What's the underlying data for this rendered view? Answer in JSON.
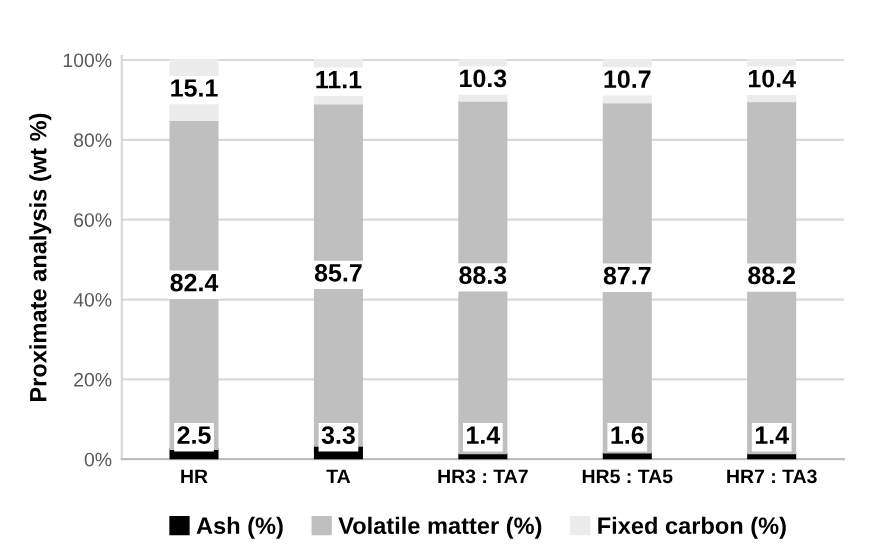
{
  "chart_data": {
    "type": "bar",
    "stacked": true,
    "ylabel": "Proximate analysis (wt %)",
    "categories": [
      "HR",
      "TA",
      "HR3 : TA7",
      "HR5 : TA5",
      "HR7 : TA3"
    ],
    "series": [
      {
        "name": "Ash (%)",
        "color": "#000000",
        "values": [
          2.5,
          3.3,
          1.4,
          1.6,
          1.4
        ]
      },
      {
        "name": "Volatile matter (%)",
        "color": "#bfbfbf",
        "values": [
          82.4,
          85.7,
          88.3,
          87.7,
          88.2
        ]
      },
      {
        "name": "Fixed carbon (%)",
        "color": "#ececec",
        "values": [
          15.1,
          11.1,
          10.3,
          10.7,
          10.4
        ]
      }
    ],
    "ylim": [
      0,
      101
    ],
    "yticks": [
      {
        "value": 0,
        "label": "0%"
      },
      {
        "value": 20,
        "label": "20%"
      },
      {
        "value": 40,
        "label": "40%"
      },
      {
        "value": 60,
        "label": "60%"
      },
      {
        "value": 80,
        "label": "80%"
      },
      {
        "value": 100,
        "label": "100%"
      }
    ],
    "grid": "y",
    "legend": "bottom",
    "data_labels": true
  }
}
